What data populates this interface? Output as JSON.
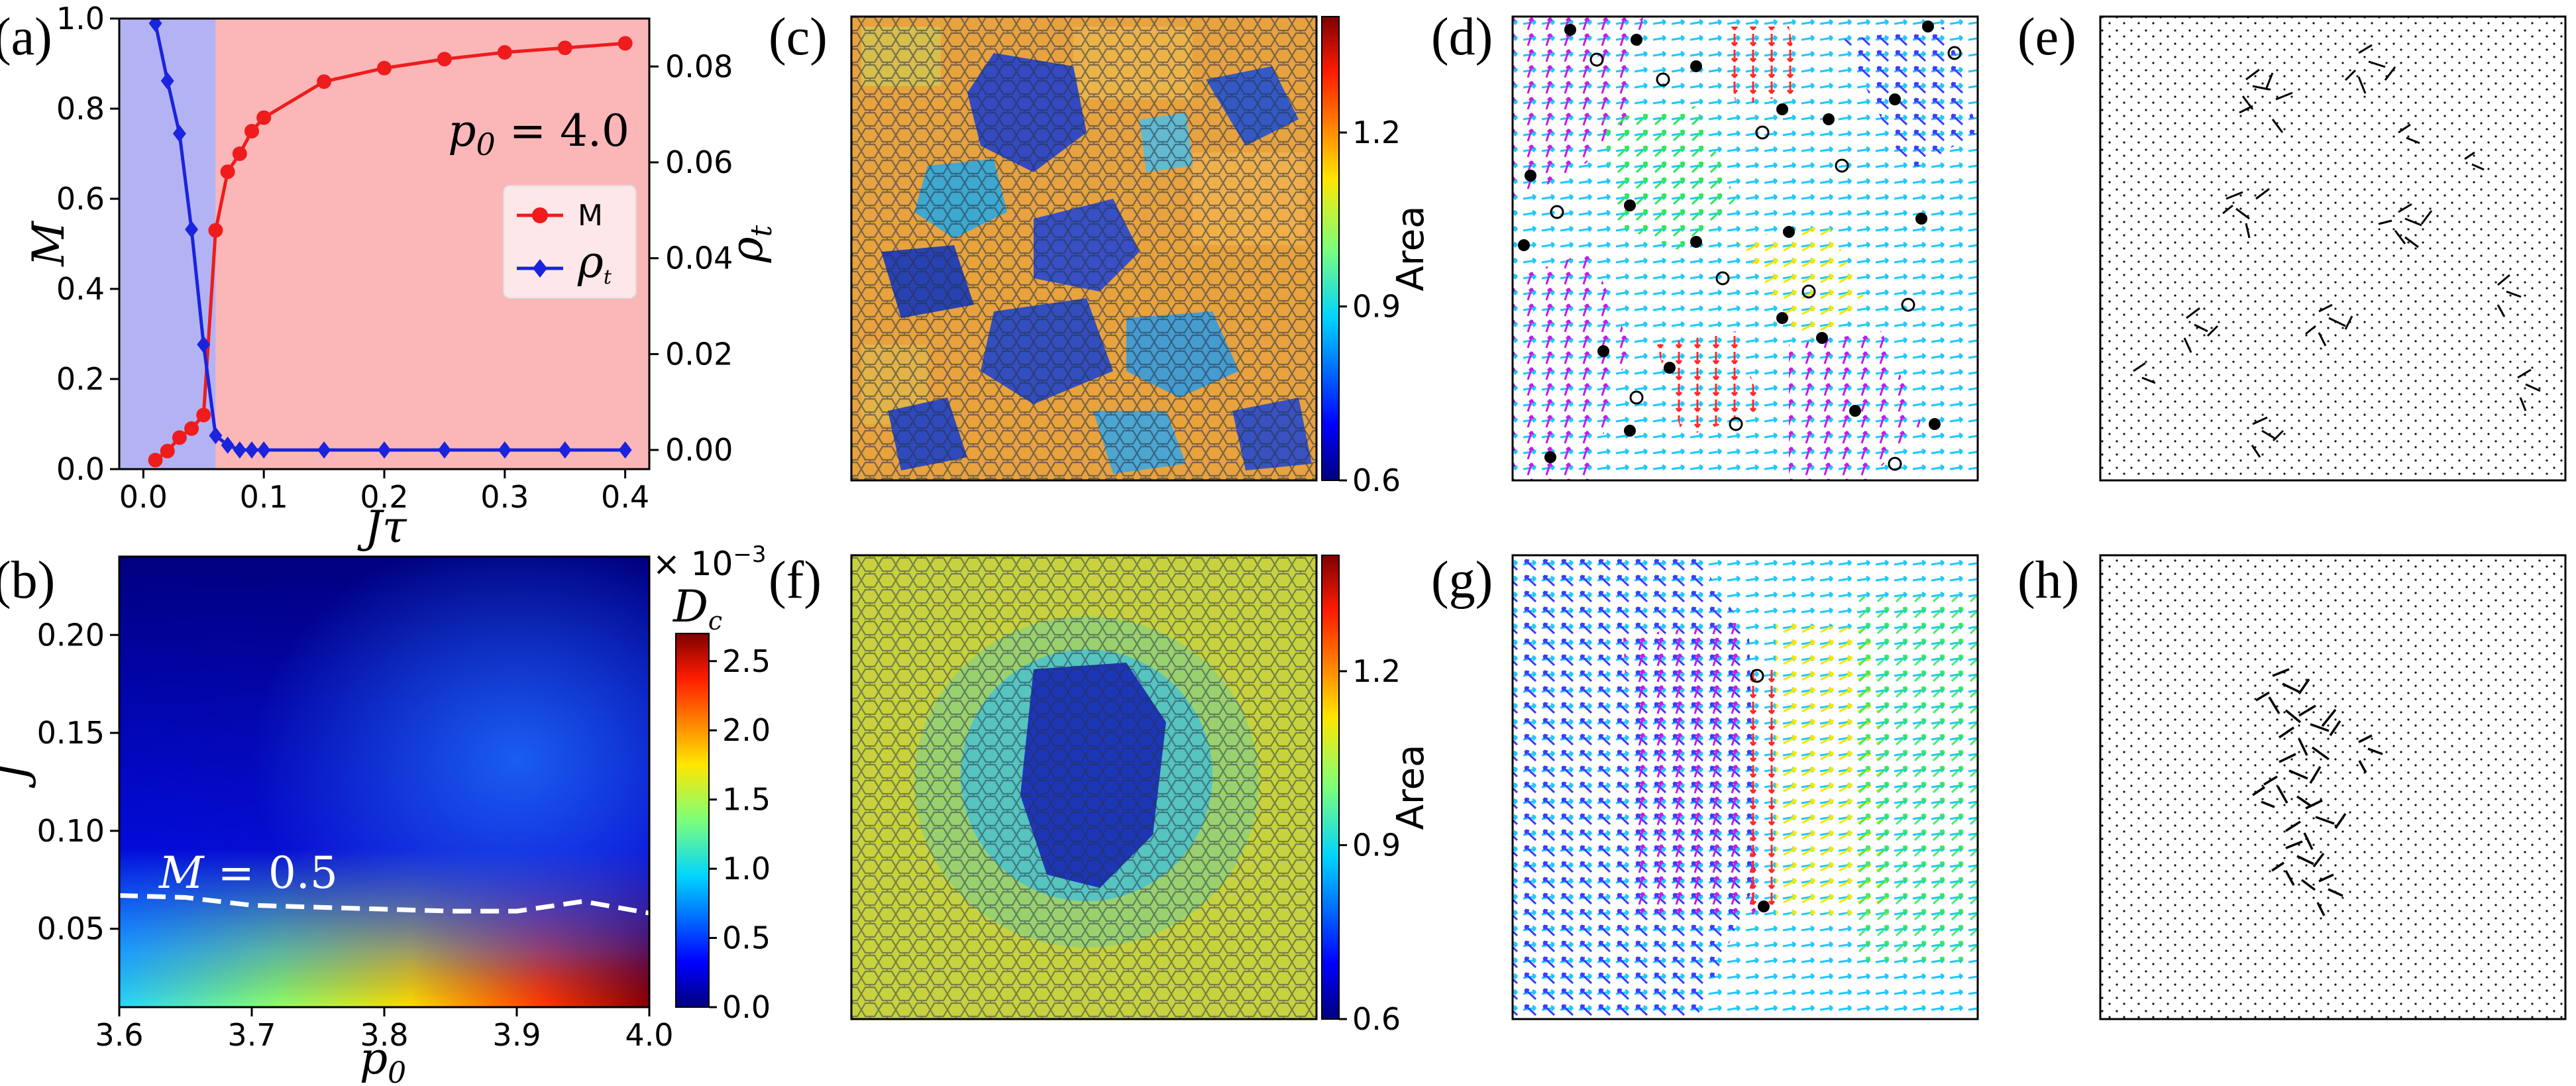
{
  "colors": {
    "red_series": "#ee1c1c",
    "blue_series": "#1a23dd",
    "blue_region": "#b3b3f3",
    "red_region": "#fbb6b8",
    "dashed_line": "#ffffff",
    "frame": "#000000"
  },
  "panel_labels": [
    "(a)",
    "(b)",
    "(c)",
    "(d)",
    "(e)",
    "(f)",
    "(g)",
    "(h)"
  ],
  "chart_data": [
    {
      "id": "a",
      "type": "line",
      "xlabel": "Jτ",
      "ylabel_left": "M",
      "ylabel_right": "ρt",
      "xlim": [
        -0.02,
        0.42
      ],
      "ylim_left": [
        0,
        1.0
      ],
      "ylim_right": [
        -0.004,
        0.09
      ],
      "xticks": [
        "0.0",
        "0.1",
        "0.2",
        "0.3",
        "0.4"
      ],
      "xtick_values": [
        0,
        0.1,
        0.2,
        0.3,
        0.4
      ],
      "yticks_left": [
        "0.0",
        "0.2",
        "0.4",
        "0.6",
        "0.8",
        "1.0"
      ],
      "ytick_values_left": [
        0,
        0.2,
        0.4,
        0.6,
        0.8,
        1.0
      ],
      "yticks_right": [
        "0.00",
        "0.02",
        "0.04",
        "0.06",
        "0.08"
      ],
      "ytick_values_right": [
        0,
        0.02,
        0.04,
        0.06,
        0.08
      ],
      "annotation": "p0 = 4.0",
      "annotation_base": "p",
      "annotation_sub": "0",
      "annotation_rest": " = 4.0",
      "regions": [
        {
          "name": "disordered",
          "x": [
            -0.02,
            0.06
          ],
          "color": "#b3b3f3"
        },
        {
          "name": "ordered",
          "x": [
            0.06,
            0.42
          ],
          "color": "#fbb6b8"
        }
      ],
      "legend": [
        {
          "label": "M",
          "marker": "circle",
          "color": "#ee1c1c"
        },
        {
          "label": "ρt",
          "base": "ρ",
          "sub": "t",
          "marker": "diamond",
          "color": "#1a23dd"
        }
      ],
      "series": [
        {
          "name": "M",
          "axis": "left",
          "color": "#ee1c1c",
          "marker": "circle",
          "x": [
            0.01,
            0.02,
            0.03,
            0.04,
            0.05,
            0.06,
            0.07,
            0.08,
            0.09,
            0.1,
            0.15,
            0.2,
            0.25,
            0.3,
            0.35,
            0.4
          ],
          "values": [
            0.02,
            0.04,
            0.07,
            0.09,
            0.12,
            0.53,
            0.66,
            0.7,
            0.75,
            0.78,
            0.86,
            0.89,
            0.91,
            0.925,
            0.935,
            0.945
          ]
        },
        {
          "name": "ρt",
          "axis": "right",
          "color": "#1a23dd",
          "marker": "diamond",
          "x": [
            0.01,
            0.02,
            0.03,
            0.04,
            0.05,
            0.06,
            0.07,
            0.08,
            0.09,
            0.1,
            0.15,
            0.2,
            0.25,
            0.3,
            0.35,
            0.4
          ],
          "values": [
            0.089,
            0.077,
            0.066,
            0.046,
            0.022,
            0.003,
            0.001,
            0.0,
            0.0,
            0.0,
            0.0,
            0.0,
            0.0,
            0.0,
            0.0,
            0.0
          ]
        }
      ]
    },
    {
      "id": "b",
      "type": "heatmap",
      "xlabel": "p0",
      "xlabel_base": "p",
      "xlabel_sub": "0",
      "ylabel": "J",
      "xlim": [
        3.6,
        4.0
      ],
      "ylim": [
        0.01,
        0.24
      ],
      "xticks": [
        "3.6",
        "3.7",
        "3.8",
        "3.9",
        "4.0"
      ],
      "xtick_values": [
        3.6,
        3.7,
        3.8,
        3.9,
        4.0
      ],
      "yticks": [
        "0.05",
        "0.10",
        "0.15",
        "0.20"
      ],
      "ytick_values": [
        0.05,
        0.1,
        0.15,
        0.2
      ],
      "colorbar_label": "Dc",
      "colorbar_label_base": "D",
      "colorbar_label_sub": "c",
      "colorbar_multiplier": "× 10−3",
      "colorbar_multiplier_base": "× 10",
      "colorbar_multiplier_exp": "−3",
      "colorbar_range": [
        0,
        2.7
      ],
      "colorbar_ticks": [
        "0.0",
        "0.5",
        "1.0",
        "1.5",
        "2.0",
        "2.5"
      ],
      "colorbar_tick_values": [
        0,
        0.5,
        1.0,
        1.5,
        2.0,
        2.5
      ],
      "contour_label": "M = 0.5",
      "contour_base": "M",
      "contour_rest": " = 0.5",
      "contour": {
        "p0": [
          3.6,
          3.65,
          3.7,
          3.75,
          3.8,
          3.85,
          3.9,
          3.95,
          4.0
        ],
        "J": [
          0.067,
          0.066,
          0.062,
          0.061,
          0.06,
          0.059,
          0.059,
          0.064,
          0.058
        ]
      }
    },
    {
      "id": "c",
      "type": "heatmap",
      "description_free": true,
      "colorbar_label": "Area",
      "colorbar_range": [
        0.6,
        1.4
      ],
      "colorbar_ticks": [
        "0.6",
        "0.9",
        "1.2"
      ],
      "colorbar_tick_values": [
        0.6,
        0.9,
        1.2
      ]
    },
    {
      "id": "f",
      "type": "heatmap",
      "colorbar_label": "Area",
      "colorbar_range": [
        0.6,
        1.4
      ],
      "colorbar_ticks": [
        "0.6",
        "0.9",
        "1.2"
      ],
      "colorbar_tick_values": [
        0.6,
        0.9,
        1.2
      ]
    }
  ]
}
